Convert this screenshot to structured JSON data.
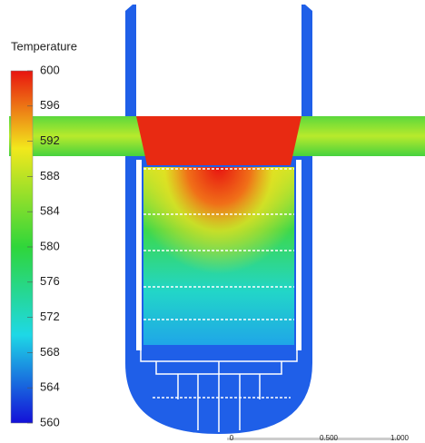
{
  "legend": {
    "title": "Temperature",
    "ticks": [
      600,
      596,
      592,
      588,
      584,
      580,
      576,
      572,
      568,
      564,
      560
    ]
  },
  "scale_bar": {
    "labels": [
      "0",
      "0.500",
      "1.000"
    ]
  }
}
